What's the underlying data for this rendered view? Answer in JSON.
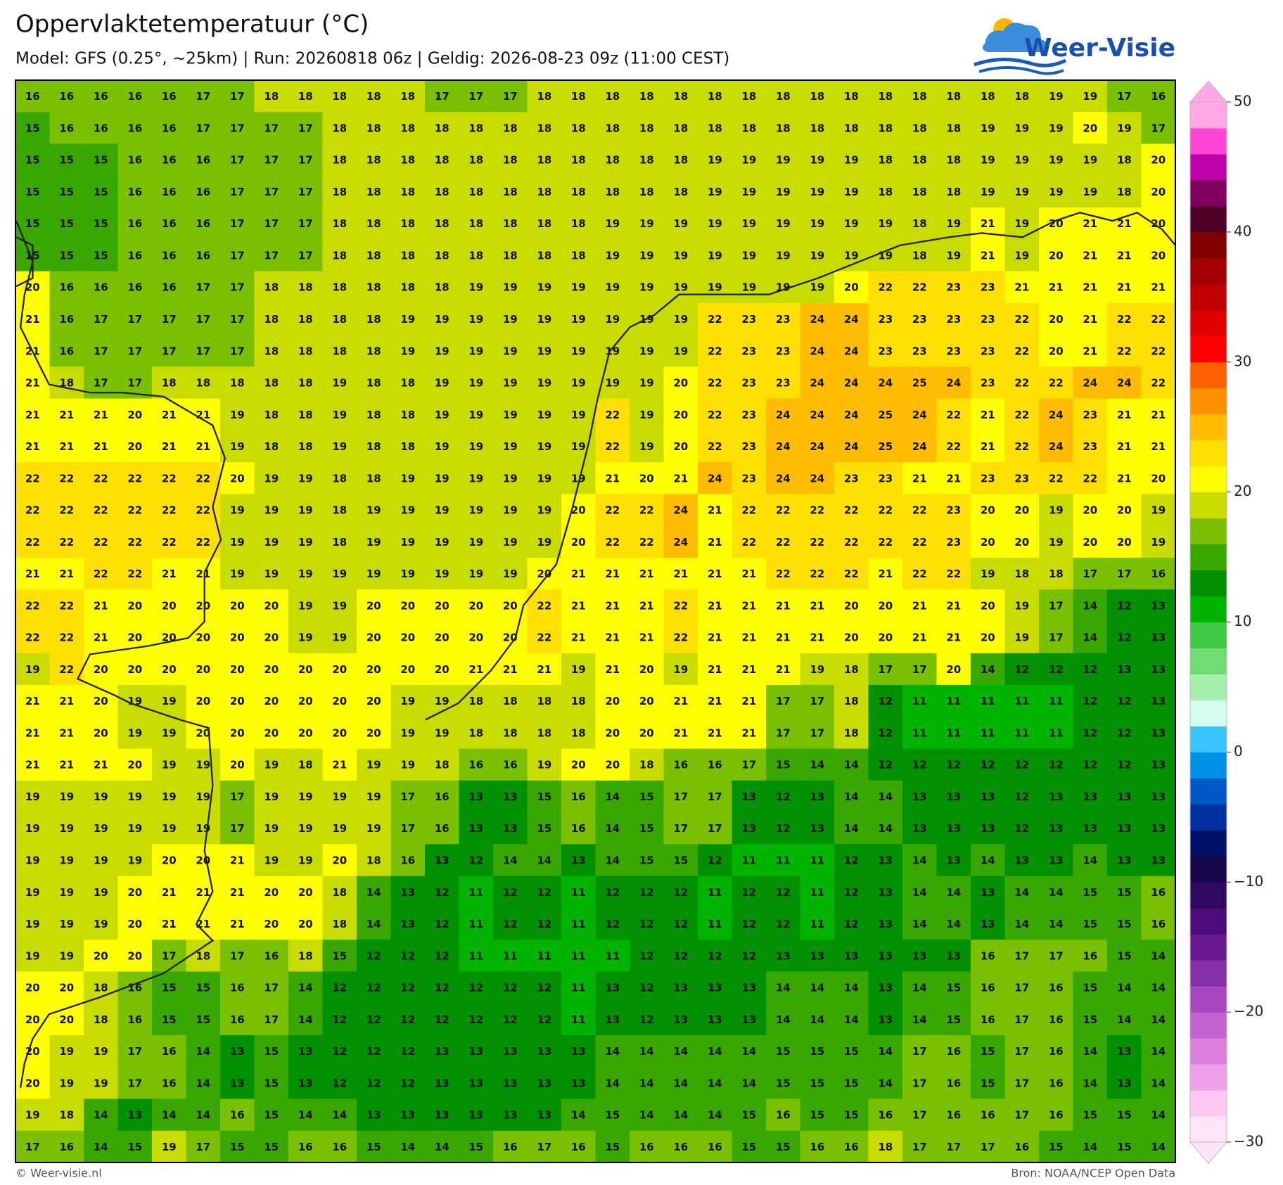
{
  "map": {
    "title": "Oppervlaktetemperatuur (°C)",
    "subtitle": "Model: GFS (0.25°, ~25km)  |  Run: 20260818 06z  |  Geldig: 2026-08-23 09z (11:00 CEST)",
    "logo": "Weer-Visie",
    "grid": {
      "rows": [
        [
          16,
          16,
          16,
          16,
          16,
          17,
          17,
          18,
          18,
          18,
          18,
          18,
          17,
          17,
          17,
          18,
          18,
          18,
          18,
          18,
          18,
          18,
          18,
          18,
          18,
          18,
          18,
          18,
          18,
          18,
          19,
          19,
          17,
          16
        ],
        [
          15,
          16,
          16,
          16,
          16,
          17,
          17,
          17,
          17,
          18,
          18,
          18,
          18,
          18,
          18,
          18,
          18,
          18,
          18,
          18,
          18,
          18,
          18,
          18,
          18,
          18,
          18,
          18,
          19,
          19,
          19,
          20,
          19,
          17
        ],
        [
          15,
          15,
          15,
          16,
          16,
          16,
          17,
          17,
          17,
          18,
          18,
          18,
          18,
          18,
          18,
          18,
          18,
          18,
          18,
          18,
          19,
          19,
          19,
          19,
          19,
          18,
          18,
          18,
          19,
          19,
          19,
          19,
          18,
          20
        ],
        [
          15,
          15,
          15,
          16,
          16,
          16,
          17,
          17,
          17,
          18,
          18,
          18,
          18,
          18,
          18,
          18,
          18,
          18,
          18,
          18,
          19,
          19,
          19,
          19,
          19,
          18,
          18,
          18,
          19,
          19,
          19,
          19,
          18,
          20
        ],
        [
          15,
          15,
          15,
          16,
          16,
          16,
          17,
          17,
          17,
          18,
          18,
          18,
          18,
          18,
          18,
          18,
          18,
          19,
          19,
          19,
          19,
          19,
          19,
          19,
          19,
          19,
          18,
          19,
          21,
          19,
          20,
          21,
          21,
          20
        ],
        [
          15,
          15,
          15,
          16,
          16,
          16,
          17,
          17,
          17,
          18,
          18,
          18,
          18,
          18,
          18,
          18,
          18,
          19,
          19,
          19,
          19,
          19,
          19,
          19,
          19,
          19,
          18,
          19,
          21,
          19,
          20,
          21,
          21,
          20
        ],
        [
          20,
          16,
          16,
          16,
          16,
          17,
          17,
          18,
          18,
          18,
          18,
          18,
          18,
          19,
          19,
          19,
          19,
          19,
          19,
          19,
          19,
          19,
          19,
          19,
          20,
          22,
          22,
          23,
          23,
          21,
          21,
          21,
          21,
          21
        ],
        [
          21,
          16,
          17,
          17,
          17,
          17,
          17,
          18,
          18,
          18,
          18,
          19,
          19,
          19,
          19,
          19,
          19,
          19,
          19,
          19,
          22,
          23,
          23,
          24,
          24,
          23,
          23,
          23,
          23,
          22,
          20,
          21,
          22,
          22
        ],
        [
          21,
          16,
          17,
          17,
          17,
          17,
          17,
          18,
          18,
          18,
          18,
          19,
          19,
          19,
          19,
          19,
          19,
          19,
          19,
          19,
          22,
          23,
          23,
          24,
          24,
          23,
          23,
          23,
          23,
          22,
          20,
          21,
          22,
          22
        ],
        [
          21,
          18,
          17,
          17,
          18,
          18,
          18,
          18,
          18,
          19,
          18,
          18,
          19,
          19,
          19,
          19,
          19,
          19,
          19,
          20,
          22,
          23,
          23,
          24,
          24,
          24,
          25,
          24,
          23,
          22,
          22,
          24,
          24,
          22
        ],
        [
          21,
          21,
          21,
          20,
          21,
          21,
          19,
          18,
          18,
          19,
          18,
          18,
          19,
          19,
          19,
          19,
          19,
          22,
          19,
          20,
          22,
          23,
          24,
          24,
          24,
          25,
          24,
          22,
          21,
          22,
          24,
          23,
          21,
          21
        ],
        [
          21,
          21,
          21,
          20,
          21,
          21,
          19,
          18,
          18,
          19,
          18,
          18,
          19,
          19,
          19,
          19,
          19,
          22,
          19,
          20,
          22,
          23,
          24,
          24,
          24,
          25,
          24,
          22,
          21,
          22,
          24,
          23,
          21,
          21
        ],
        [
          22,
          22,
          22,
          22,
          22,
          22,
          20,
          19,
          19,
          18,
          18,
          19,
          19,
          19,
          19,
          19,
          19,
          21,
          20,
          21,
          24,
          23,
          24,
          24,
          23,
          23,
          21,
          21,
          23,
          23,
          22,
          22,
          21,
          20
        ],
        [
          22,
          22,
          22,
          22,
          22,
          22,
          19,
          19,
          19,
          18,
          19,
          19,
          19,
          19,
          19,
          19,
          20,
          22,
          22,
          24,
          21,
          22,
          22,
          22,
          22,
          22,
          22,
          23,
          20,
          20,
          19,
          20,
          20,
          19
        ],
        [
          22,
          22,
          22,
          22,
          22,
          22,
          19,
          19,
          19,
          18,
          19,
          19,
          19,
          19,
          19,
          19,
          20,
          22,
          22,
          24,
          21,
          22,
          22,
          22,
          22,
          22,
          22,
          23,
          20,
          20,
          19,
          20,
          20,
          19
        ],
        [
          21,
          21,
          22,
          22,
          21,
          21,
          19,
          19,
          19,
          19,
          19,
          19,
          19,
          19,
          19,
          20,
          21,
          21,
          21,
          21,
          21,
          21,
          22,
          22,
          22,
          21,
          22,
          22,
          19,
          18,
          18,
          17,
          17,
          16
        ],
        [
          22,
          22,
          21,
          20,
          20,
          20,
          20,
          20,
          19,
          19,
          20,
          20,
          20,
          20,
          20,
          22,
          21,
          21,
          21,
          22,
          21,
          21,
          21,
          21,
          20,
          20,
          21,
          21,
          20,
          19,
          17,
          14,
          12,
          13
        ],
        [
          22,
          22,
          21,
          20,
          20,
          20,
          20,
          20,
          19,
          19,
          20,
          20,
          20,
          20,
          20,
          22,
          21,
          21,
          21,
          22,
          21,
          21,
          21,
          21,
          20,
          20,
          21,
          21,
          20,
          19,
          17,
          14,
          12,
          13
        ],
        [
          19,
          22,
          20,
          20,
          20,
          20,
          20,
          20,
          20,
          20,
          20,
          20,
          20,
          21,
          21,
          21,
          19,
          21,
          20,
          19,
          21,
          21,
          21,
          19,
          18,
          17,
          17,
          20,
          14,
          12,
          12,
          12,
          13,
          13
        ],
        [
          21,
          21,
          20,
          19,
          19,
          20,
          20,
          20,
          20,
          20,
          20,
          19,
          19,
          18,
          18,
          18,
          18,
          20,
          20,
          21,
          21,
          21,
          17,
          17,
          18,
          12,
          11,
          11,
          11,
          11,
          11,
          12,
          12,
          13
        ],
        [
          21,
          21,
          20,
          19,
          19,
          20,
          20,
          20,
          20,
          20,
          20,
          19,
          19,
          18,
          18,
          18,
          18,
          20,
          20,
          21,
          21,
          21,
          17,
          17,
          18,
          12,
          11,
          11,
          11,
          11,
          11,
          12,
          12,
          13
        ],
        [
          21,
          21,
          21,
          20,
          19,
          19,
          20,
          19,
          18,
          21,
          19,
          19,
          18,
          16,
          16,
          19,
          20,
          20,
          18,
          16,
          16,
          17,
          15,
          14,
          14,
          12,
          12,
          12,
          12,
          12,
          12,
          12,
          12,
          13
        ],
        [
          19,
          19,
          19,
          19,
          19,
          19,
          17,
          19,
          19,
          19,
          19,
          17,
          16,
          13,
          13,
          15,
          16,
          14,
          15,
          17,
          17,
          13,
          12,
          13,
          14,
          14,
          13,
          13,
          13,
          12,
          13,
          13,
          13,
          13
        ],
        [
          19,
          19,
          19,
          19,
          19,
          19,
          17,
          19,
          19,
          19,
          19,
          17,
          16,
          13,
          13,
          15,
          16,
          14,
          15,
          17,
          17,
          13,
          12,
          13,
          14,
          14,
          13,
          13,
          13,
          12,
          13,
          13,
          13,
          13
        ],
        [
          19,
          19,
          19,
          19,
          20,
          20,
          21,
          19,
          19,
          20,
          18,
          16,
          13,
          12,
          14,
          14,
          13,
          14,
          15,
          15,
          12,
          11,
          11,
          11,
          12,
          13,
          14,
          13,
          14,
          13,
          13,
          14,
          13,
          13
        ],
        [
          19,
          19,
          19,
          20,
          21,
          21,
          21,
          20,
          20,
          18,
          14,
          13,
          12,
          11,
          12,
          12,
          11,
          12,
          12,
          12,
          11,
          12,
          12,
          11,
          12,
          13,
          14,
          14,
          13,
          14,
          14,
          15,
          15,
          16
        ],
        [
          19,
          19,
          19,
          20,
          21,
          21,
          21,
          20,
          20,
          18,
          14,
          13,
          12,
          11,
          12,
          12,
          11,
          12,
          12,
          12,
          11,
          12,
          12,
          11,
          12,
          13,
          14,
          14,
          13,
          14,
          14,
          15,
          15,
          16
        ],
        [
          19,
          19,
          20,
          20,
          17,
          18,
          17,
          16,
          18,
          15,
          12,
          12,
          12,
          11,
          11,
          11,
          11,
          11,
          12,
          12,
          12,
          12,
          13,
          13,
          13,
          13,
          13,
          13,
          16,
          17,
          17,
          16,
          15,
          14
        ],
        [
          20,
          20,
          18,
          16,
          15,
          15,
          16,
          17,
          14,
          12,
          12,
          12,
          12,
          12,
          12,
          12,
          11,
          13,
          12,
          13,
          13,
          13,
          14,
          14,
          14,
          13,
          14,
          15,
          16,
          17,
          16,
          15,
          14,
          14
        ],
        [
          20,
          20,
          18,
          16,
          15,
          15,
          16,
          17,
          14,
          12,
          12,
          12,
          12,
          12,
          12,
          12,
          11,
          13,
          12,
          13,
          13,
          13,
          14,
          14,
          14,
          13,
          14,
          15,
          16,
          17,
          16,
          15,
          14,
          14
        ],
        [
          20,
          19,
          19,
          17,
          16,
          14,
          13,
          15,
          13,
          12,
          12,
          12,
          13,
          13,
          13,
          13,
          13,
          14,
          14,
          14,
          14,
          14,
          15,
          15,
          15,
          14,
          17,
          16,
          15,
          17,
          16,
          14,
          13,
          14
        ],
        [
          20,
          19,
          19,
          17,
          16,
          14,
          13,
          15,
          13,
          12,
          12,
          12,
          13,
          13,
          13,
          13,
          13,
          14,
          14,
          14,
          14,
          14,
          15,
          15,
          15,
          14,
          17,
          16,
          15,
          17,
          16,
          14,
          13,
          14
        ],
        [
          19,
          18,
          14,
          13,
          14,
          14,
          16,
          15,
          14,
          14,
          13,
          13,
          13,
          13,
          13,
          13,
          14,
          15,
          14,
          14,
          14,
          15,
          16,
          15,
          15,
          16,
          17,
          16,
          16,
          17,
          16,
          15,
          15,
          14
        ],
        [
          17,
          16,
          14,
          15,
          19,
          17,
          15,
          15,
          16,
          16,
          15,
          14,
          14,
          15,
          16,
          17,
          16,
          15,
          16,
          16,
          16,
          15,
          15,
          16,
          16,
          18,
          17,
          17,
          17,
          16,
          15,
          14,
          15,
          14
        ]
      ]
    },
    "colorbar": {
      "lim": [
        -30,
        50
      ],
      "ticks": [
        50,
        40,
        30,
        20,
        10,
        0,
        {
          "value": -10,
          "label": "−10"
        },
        {
          "value": -20,
          "label": "−20"
        },
        {
          "value": -30,
          "label": "−30"
        }
      ],
      "colors": [
        "#ffe4fa",
        "#ffc8f2",
        "#f0a0e8",
        "#dc80dc",
        "#c460d0",
        "#a848c0",
        "#8830a8",
        "#681890",
        "#4c0c78",
        "#300860",
        "#18064a",
        "#001068",
        "#0030a0",
        "#0058c8",
        "#0090e8",
        "#38c4ff",
        "#d4fff0",
        "#a4f0ac",
        "#70dc74",
        "#40c844",
        "#00b400",
        "#009000",
        "#38a800",
        "#78c000",
        "#c8dc00",
        "#ffff00",
        "#ffe000",
        "#ffbc00",
        "#ff9000",
        "#ff6000",
        "#ff0000",
        "#e00000",
        "#c00000",
        "#a00000",
        "#800000",
        "#500028",
        "#800060",
        "#c000a8",
        "#ff44d8",
        "#ffa8e4"
      ]
    }
  },
  "footer": {
    "left": "© Weer-visie.nl",
    "right": "Bron: NOAA/NCEP Open Data"
  }
}
